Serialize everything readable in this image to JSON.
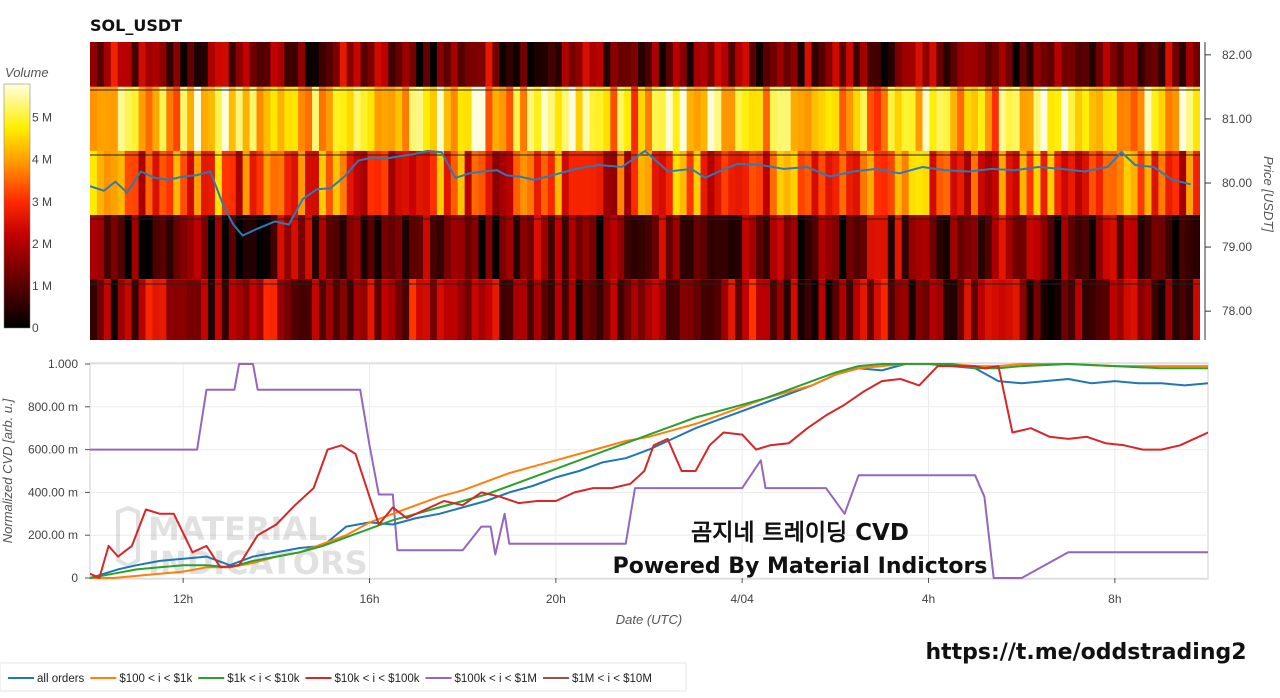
{
  "chart_data": [
    {
      "type": "heatmap",
      "title": "SOL_USDT",
      "colorbar": {
        "label": "Volume",
        "ticks": [
          "5 M",
          "4 M",
          "3 M",
          "2 M",
          "1 M",
          "0"
        ],
        "values": [
          5000000,
          4000000,
          3000000,
          2000000,
          1000000,
          0
        ],
        "range": [
          0,
          5800000
        ]
      },
      "y_right": {
        "label": "Price [USDT]",
        "ticks": [
          "82.00",
          "81.00",
          "80.00",
          "79.00",
          "78.00"
        ],
        "values": [
          82.0,
          81.0,
          80.0,
          79.0,
          78.0
        ],
        "range": [
          77.55,
          82.2
        ]
      },
      "price_bands": [
        {
          "low": 81.5,
          "high": 82.2,
          "level": 0.22
        },
        {
          "low": 80.5,
          "high": 81.5,
          "level": 0.78
        },
        {
          "low": 79.5,
          "high": 80.5,
          "level": 0.55
        },
        {
          "low": 78.5,
          "high": 79.5,
          "level": 0.2
        },
        {
          "low": 77.55,
          "high": 78.5,
          "level": 0.28
        }
      ],
      "price_series": {
        "x_hours": [
          0,
          0.3,
          0.55,
          0.8,
          1.1,
          1.4,
          1.7,
          2.0,
          2.3,
          2.6,
          2.9,
          3.1,
          3.3,
          3.6,
          4.0,
          4.3,
          4.6,
          4.9,
          5.2,
          5.5,
          5.8,
          6.1,
          6.4,
          6.7,
          7.0,
          7.3,
          7.6,
          7.9,
          8.2,
          8.5,
          8.8,
          9.0,
          9.3,
          9.6,
          10.0,
          10.5,
          11.0,
          11.5,
          12.0,
          12.5,
          13.0,
          13.3,
          13.6,
          14.0,
          14.5,
          15.0,
          15.5,
          16.0,
          16.5,
          17.0,
          17.5,
          18.0,
          18.5,
          19.0,
          19.5,
          20.0,
          20.5,
          21.0,
          21.5,
          22.0,
          22.3,
          22.6,
          23.0,
          23.4,
          23.8
        ],
        "y": [
          79.95,
          79.88,
          80.02,
          79.85,
          80.18,
          80.08,
          80.05,
          80.1,
          80.12,
          80.18,
          79.62,
          79.35,
          79.18,
          79.28,
          79.4,
          79.35,
          79.75,
          79.9,
          79.92,
          80.1,
          80.35,
          80.4,
          80.38,
          80.42,
          80.45,
          80.5,
          80.48,
          80.08,
          80.15,
          80.18,
          80.2,
          80.12,
          80.1,
          80.05,
          80.12,
          80.22,
          80.28,
          80.25,
          80.5,
          80.18,
          80.22,
          80.08,
          80.18,
          80.3,
          80.28,
          80.22,
          80.25,
          80.1,
          80.18,
          80.22,
          80.15,
          80.25,
          80.2,
          80.18,
          80.22,
          80.2,
          80.25,
          80.22,
          80.18,
          80.25,
          80.48,
          80.28,
          80.25,
          80.05,
          79.98
        ]
      }
    },
    {
      "type": "line",
      "xlabel": "Date (UTC)",
      "ylabel": "Normalized CVD [arb. u.]",
      "ylim": [
        0,
        1
      ],
      "y_ticks": [
        "1.000",
        "800.00 m",
        "600.00 m",
        "400.00 m",
        "200.00 m",
        "0"
      ],
      "y_tick_values": [
        1.0,
        0.8,
        0.6,
        0.4,
        0.2,
        0
      ],
      "x_range_hours": [
        0,
        24
      ],
      "x_ticks": [
        "12h",
        "16h",
        "20h",
        "4/04",
        "4h",
        "8h"
      ],
      "x_tick_hours": [
        2,
        6,
        10,
        14,
        18,
        22
      ],
      "legend_position": "bottom-left",
      "series": [
        {
          "name": "all orders",
          "color": "#1f77b4",
          "x": [
            0,
            0.3,
            0.6,
            1,
            1.5,
            2,
            2.5,
            3,
            3.5,
            4,
            4.5,
            5,
            5.5,
            6,
            6.5,
            7,
            7.5,
            8,
            8.5,
            9,
            9.5,
            10,
            10.5,
            11,
            11.5,
            12,
            12.5,
            13,
            13.5,
            14,
            14.5,
            15,
            15.5,
            16,
            16.5,
            17,
            17.5,
            18,
            18.5,
            19,
            19.5,
            20,
            20.5,
            21,
            21.5,
            22,
            22.5,
            23,
            23.5,
            24
          ],
          "y": [
            0,
            0.02,
            0.04,
            0.06,
            0.08,
            0.09,
            0.1,
            0.06,
            0.1,
            0.12,
            0.14,
            0.15,
            0.24,
            0.26,
            0.25,
            0.28,
            0.3,
            0.33,
            0.36,
            0.4,
            0.43,
            0.47,
            0.5,
            0.54,
            0.56,
            0.6,
            0.65,
            0.7,
            0.74,
            0.78,
            0.82,
            0.86,
            0.9,
            0.95,
            0.98,
            0.97,
            1.0,
            1.0,
            0.99,
            0.98,
            0.92,
            0.91,
            0.92,
            0.93,
            0.91,
            0.92,
            0.91,
            0.91,
            0.9,
            0.91
          ]
        },
        {
          "name": "$100 < i < $1k",
          "color": "#ff7f0e",
          "x": [
            0,
            0.5,
            1,
            1.5,
            2,
            2.5,
            3,
            3.5,
            4,
            4.5,
            5,
            5.5,
            6,
            6.5,
            7,
            7.5,
            8,
            8.5,
            9,
            9.5,
            10,
            10.5,
            11,
            11.5,
            12,
            12.5,
            13,
            13.5,
            14,
            14.5,
            15,
            15.5,
            16,
            16.5,
            17,
            17.5,
            18,
            18.5,
            19,
            19.5,
            20,
            21,
            22,
            23,
            24
          ],
          "y": [
            0,
            0.0,
            0.01,
            0.02,
            0.03,
            0.05,
            0.05,
            0.07,
            0.1,
            0.12,
            0.16,
            0.2,
            0.26,
            0.3,
            0.34,
            0.38,
            0.41,
            0.45,
            0.49,
            0.52,
            0.55,
            0.58,
            0.61,
            0.64,
            0.66,
            0.69,
            0.72,
            0.76,
            0.8,
            0.84,
            0.87,
            0.9,
            0.95,
            0.98,
            0.99,
            1.0,
            1.0,
            1.0,
            0.99,
            0.99,
            1.0,
            1.0,
            0.99,
            0.99,
            0.99
          ]
        },
        {
          "name": "$1k < i < $10k",
          "color": "#2ca02c",
          "x": [
            0,
            0.5,
            1,
            1.5,
            2,
            2.5,
            3,
            3.5,
            4,
            4.5,
            5,
            5.5,
            6,
            6.5,
            7,
            7.5,
            8,
            8.5,
            9,
            9.5,
            10,
            10.5,
            11,
            11.5,
            12,
            12.5,
            13,
            13.5,
            14,
            14.5,
            15,
            15.5,
            16,
            16.5,
            17,
            17.5,
            18,
            18.5,
            19,
            19.5,
            20,
            21,
            22,
            23,
            24
          ],
          "y": [
            0,
            0.02,
            0.04,
            0.05,
            0.06,
            0.06,
            0.05,
            0.08,
            0.1,
            0.12,
            0.15,
            0.19,
            0.23,
            0.27,
            0.3,
            0.33,
            0.36,
            0.39,
            0.43,
            0.47,
            0.51,
            0.55,
            0.59,
            0.63,
            0.67,
            0.71,
            0.75,
            0.78,
            0.81,
            0.84,
            0.88,
            0.92,
            0.96,
            0.99,
            1.0,
            1.0,
            1.0,
            1.0,
            0.98,
            0.98,
            0.99,
            1.0,
            0.99,
            0.98,
            0.98
          ]
        },
        {
          "name": "$10k < i < $100k",
          "color": "#d62728",
          "x": [
            0,
            0.2,
            0.4,
            0.6,
            0.9,
            1.2,
            1.5,
            1.8,
            2.2,
            2.5,
            2.8,
            3.2,
            3.6,
            4.0,
            4.4,
            4.8,
            5.1,
            5.4,
            5.7,
            6.0,
            6.2,
            6.5,
            6.8,
            7.2,
            7.6,
            8.0,
            8.4,
            8.8,
            9.2,
            9.6,
            10.0,
            10.4,
            10.8,
            11.2,
            11.6,
            11.9,
            12.1,
            12.4,
            12.7,
            13.0,
            13.3,
            13.6,
            14.0,
            14.3,
            14.6,
            15.0,
            15.4,
            15.8,
            16.2,
            16.6,
            17.0,
            17.4,
            17.8,
            18.2,
            18.6,
            19.0,
            19.2,
            19.5,
            19.8,
            20.2,
            20.6,
            21.0,
            21.4,
            21.8,
            22.2,
            22.6,
            23.0,
            23.4,
            24.0
          ],
          "y": [
            0.02,
            0.0,
            0.15,
            0.1,
            0.15,
            0.32,
            0.3,
            0.3,
            0.12,
            0.15,
            0.05,
            0.06,
            0.2,
            0.25,
            0.34,
            0.42,
            0.6,
            0.62,
            0.58,
            0.38,
            0.25,
            0.33,
            0.28,
            0.32,
            0.36,
            0.34,
            0.4,
            0.38,
            0.35,
            0.36,
            0.36,
            0.4,
            0.42,
            0.42,
            0.44,
            0.5,
            0.62,
            0.65,
            0.5,
            0.5,
            0.62,
            0.68,
            0.67,
            0.6,
            0.62,
            0.63,
            0.7,
            0.76,
            0.81,
            0.87,
            0.92,
            0.93,
            0.9,
            0.99,
            0.99,
            0.99,
            0.98,
            0.99,
            0.68,
            0.7,
            0.66,
            0.65,
            0.66,
            0.63,
            0.62,
            0.6,
            0.6,
            0.62,
            0.68
          ]
        },
        {
          "name": "$100k < i < $1M",
          "color": "#9467bd",
          "x": [
            0,
            2.3,
            2.5,
            3.1,
            3.2,
            3.5,
            3.6,
            5.8,
            6.0,
            6.2,
            6.5,
            6.6,
            7.0,
            8.0,
            8.4,
            8.6,
            8.7,
            8.9,
            9.0,
            9.2,
            11.0,
            11.5,
            11.7,
            12.0,
            13.5,
            14.0,
            14.4,
            14.5,
            14.6,
            15.8,
            16.2,
            16.5,
            17.5,
            18.0,
            19.0,
            19.2,
            19.4,
            19.6,
            20.0,
            21.0,
            22.0,
            23.0,
            24.0
          ],
          "y": [
            0.6,
            0.6,
            0.88,
            0.88,
            1.0,
            1.0,
            0.88,
            0.88,
            0.62,
            0.39,
            0.39,
            0.13,
            0.13,
            0.13,
            0.24,
            0.24,
            0.11,
            0.3,
            0.16,
            0.16,
            0.16,
            0.16,
            0.42,
            0.42,
            0.42,
            0.42,
            0.55,
            0.42,
            0.42,
            0.42,
            0.3,
            0.48,
            0.48,
            0.48,
            0.48,
            0.38,
            0.0,
            0.0,
            0.0,
            0.12,
            0.12,
            0.12,
            0.12
          ]
        },
        {
          "name": "$1M < i < $10M",
          "color": "#8c564b",
          "x": [],
          "y": []
        }
      ]
    }
  ],
  "watermark": {
    "logo_text": [
      "MATERIAL",
      "INDICATORS"
    ],
    "line1": "곰지네 트레이딩 CVD",
    "line2": "Powered By Material Indictors",
    "url": "https://t.me/oddstrading2"
  }
}
